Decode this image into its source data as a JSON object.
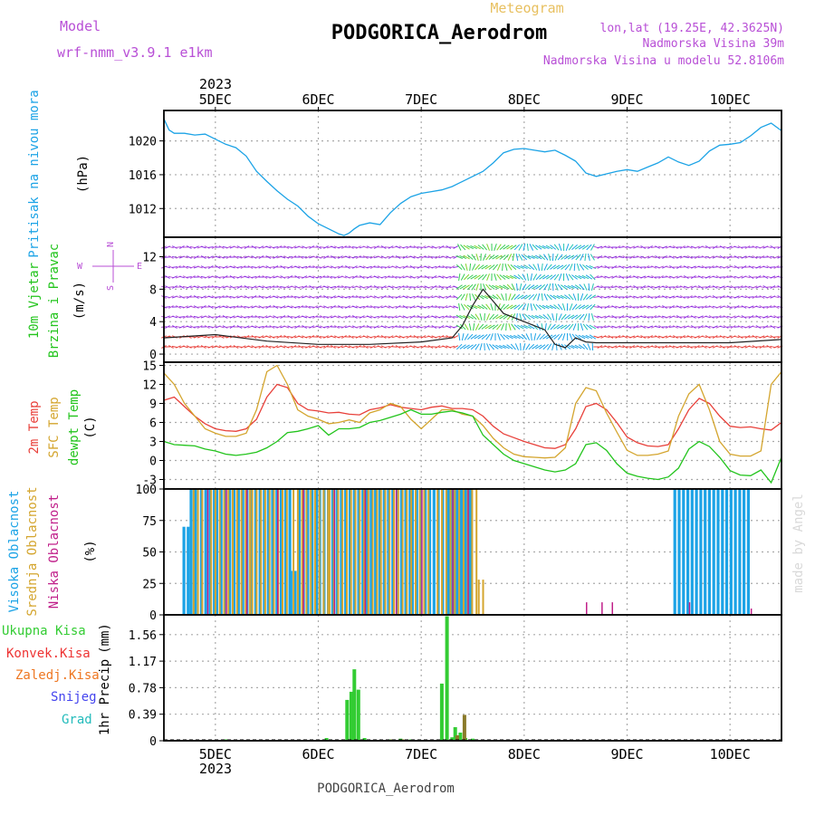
{
  "header": {
    "model_label": "Model",
    "model_name": "wrf-nmm_v3.9.1 e1km",
    "meteogram_label": "Meteogram",
    "station": "PODGORICA_Aerodrom",
    "lonlat": "lon,lat (19.25E, 42.3625N)",
    "elev": "Nadmorska Visina 39m",
    "model_elev": "Nadmorska Visina u modelu 52.8106m",
    "footer_station": "PODGORICA_Aerodrom",
    "credit": "made by Angel"
  },
  "colors": {
    "pressure": "#1ca3e6",
    "temp2m": "#e8403a",
    "sfc": "#d4a52e",
    "dewpt": "#22c41c",
    "high_cloud": "#1ca3e6",
    "mid_cloud": "#d4a52e",
    "low_cloud": "#c0208a",
    "total_precip": "#33cc33",
    "conv_precip": "#ee3333",
    "frozen_precip": "#ee7722",
    "snow": "#4444ee",
    "grad": "#22bbbb"
  },
  "chart_data": {
    "x_dates": [
      "5DEC",
      "6DEC",
      "7DEC",
      "8DEC",
      "9DEC",
      "10DEC"
    ],
    "year": "2023",
    "x_range_days": [
      4.5,
      10.5
    ],
    "panels": {
      "pressure": {
        "type": "line",
        "ylabel_a": "Pritisak na nivou mora",
        "ylabel_b": "(hPa)",
        "yticks": [
          1012,
          1016,
          1020
        ],
        "ylim": [
          1008.6,
          1023.6
        ],
        "x": [
          4.5,
          4.55,
          4.6,
          4.7,
          4.8,
          4.9,
          5.0,
          5.1,
          5.2,
          5.3,
          5.4,
          5.5,
          5.6,
          5.7,
          5.8,
          5.9,
          6.0,
          6.1,
          6.2,
          6.25,
          6.3,
          6.35,
          6.4,
          6.5,
          6.6,
          6.7,
          6.8,
          6.9,
          7.0,
          7.1,
          7.2,
          7.3,
          7.4,
          7.5,
          7.6,
          7.7,
          7.8,
          7.9,
          8.0,
          8.1,
          8.2,
          8.3,
          8.4,
          8.5,
          8.6,
          8.7,
          8.8,
          8.9,
          9.0,
          9.1,
          9.2,
          9.3,
          9.4,
          9.5,
          9.6,
          9.7,
          9.8,
          9.9,
          10.0,
          10.1,
          10.2,
          10.3,
          10.4,
          10.5
        ],
        "y": [
          1022.6,
          1021.3,
          1020.9,
          1020.9,
          1020.7,
          1020.8,
          1020.2,
          1019.6,
          1019.2,
          1018.2,
          1016.4,
          1015.2,
          1014.1,
          1013.1,
          1012.3,
          1011.1,
          1010.2,
          1009.6,
          1009.0,
          1008.8,
          1009.1,
          1009.6,
          1010.0,
          1010.3,
          1010.1,
          1011.5,
          1012.6,
          1013.4,
          1013.8,
          1014.0,
          1014.2,
          1014.6,
          1015.2,
          1015.8,
          1016.4,
          1017.4,
          1018.6,
          1019.0,
          1019.1,
          1018.9,
          1018.7,
          1018.9,
          1018.3,
          1017.6,
          1016.2,
          1015.8,
          1016.1,
          1016.4,
          1016.6,
          1016.4,
          1016.9,
          1017.4,
          1018.1,
          1017.5,
          1017.1,
          1017.6,
          1018.8,
          1019.5,
          1019.6,
          1019.8,
          1020.6,
          1021.6,
          1022.1,
          1021.2
        ]
      },
      "wind": {
        "type": "vector",
        "ylabel_a": "10m Vjetar",
        "ylabel_b": "Brzina i Pravac",
        "ylabel_c": "(m/s)",
        "compass_n": "N",
        "compass_s": "S",
        "compass_e": "E",
        "compass_w": "W",
        "yticks": [
          0,
          4,
          8,
          12
        ],
        "ylim": [
          -1,
          14.4
        ],
        "x": [
          4.5,
          5.0,
          5.5,
          6.0,
          6.5,
          7.0,
          7.3,
          7.4,
          7.5,
          7.6,
          7.7,
          7.8,
          8.0,
          8.2,
          8.3,
          8.4,
          8.5,
          8.6,
          8.7,
          9.0,
          9.5,
          10.0,
          10.5
        ],
        "speed": [
          2.0,
          2.4,
          1.6,
          1.2,
          1.2,
          1.5,
          2.0,
          3.5,
          6.0,
          8.0,
          6.5,
          5.0,
          4.0,
          3.0,
          1.2,
          0.8,
          2.0,
          1.5,
          1.4,
          1.4,
          1.4,
          1.4,
          1.8
        ]
      },
      "temperature": {
        "type": "line",
        "ylabel_a": "2m Temp",
        "ylabel_b": "SFC Temp",
        "ylabel_c": "dewpt Temp",
        "ylabel_d": "(C)",
        "yticks": [
          -3,
          0,
          3,
          6,
          9,
          12,
          15
        ],
        "ylim": [
          -4.5,
          15.5
        ],
        "x": [
          4.5,
          4.6,
          4.7,
          4.8,
          4.9,
          5.0,
          5.1,
          5.2,
          5.3,
          5.4,
          5.5,
          5.6,
          5.7,
          5.8,
          5.9,
          6.0,
          6.1,
          6.2,
          6.3,
          6.4,
          6.5,
          6.6,
          6.7,
          6.8,
          6.9,
          7.0,
          7.1,
          7.2,
          7.3,
          7.4,
          7.5,
          7.6,
          7.7,
          7.8,
          7.9,
          8.0,
          8.1,
          8.2,
          8.3,
          8.4,
          8.5,
          8.6,
          8.7,
          8.8,
          8.9,
          9.0,
          9.1,
          9.2,
          9.3,
          9.4,
          9.5,
          9.6,
          9.7,
          9.8,
          9.9,
          10.0,
          10.1,
          10.2,
          10.3,
          10.4,
          10.5
        ],
        "series": [
          {
            "name": "2m Temp",
            "y": [
              9.5,
              10.0,
              8.5,
              7.0,
              5.8,
              5.0,
              4.7,
              4.6,
              5.0,
              6.5,
              10.0,
              12.0,
              11.5,
              9.0,
              8.0,
              7.8,
              7.5,
              7.6,
              7.3,
              7.2,
              8.0,
              8.3,
              8.8,
              8.4,
              8.2,
              8.0,
              8.4,
              8.6,
              8.2,
              8.2,
              8.0,
              7.0,
              5.4,
              4.2,
              3.6,
              3.0,
              2.5,
              2.0,
              1.9,
              2.5,
              5.0,
              8.5,
              9.0,
              8.0,
              6.0,
              3.7,
              2.8,
              2.3,
              2.2,
              2.5,
              5.0,
              8.0,
              9.8,
              9.0,
              7.0,
              5.4,
              5.2,
              5.3,
              5.0,
              4.8,
              6.0
            ]
          },
          {
            "name": "SFC Temp",
            "y": [
              13.8,
              12.0,
              9.0,
              7.0,
              5.0,
              4.3,
              3.8,
              3.8,
              4.3,
              8.0,
              14.0,
              15.0,
              12.0,
              8.0,
              7.0,
              6.5,
              5.8,
              6.0,
              6.4,
              6.0,
              7.5,
              8.0,
              9.0,
              8.5,
              6.5,
              5.0,
              6.5,
              8.0,
              8.0,
              7.3,
              7.0,
              5.5,
              3.5,
              2.0,
              1.0,
              0.6,
              0.5,
              0.4,
              0.5,
              2.0,
              9.0,
              11.5,
              11.0,
              7.5,
              4.5,
              1.6,
              0.8,
              0.8,
              1.0,
              1.5,
              7.0,
              10.5,
              12.0,
              8.0,
              3.0,
              1.0,
              0.7,
              0.7,
              1.5,
              12.0,
              14.0
            ]
          },
          {
            "name": "dewpt Temp",
            "y": [
              3.0,
              2.5,
              2.4,
              2.3,
              1.8,
              1.5,
              1.0,
              0.8,
              1.0,
              1.3,
              2.0,
              3.0,
              4.4,
              4.6,
              5.0,
              5.5,
              4.0,
              5.0,
              5.0,
              5.2,
              6.0,
              6.3,
              6.8,
              7.3,
              8.0,
              7.3,
              7.3,
              7.6,
              7.8,
              7.5,
              7.0,
              4.0,
              2.5,
              1.0,
              0.0,
              -0.5,
              -1.0,
              -1.5,
              -1.8,
              -1.5,
              -0.5,
              2.5,
              2.8,
              1.6,
              -0.5,
              -2.0,
              -2.5,
              -2.8,
              -3.0,
              -2.6,
              -1.2,
              1.8,
              3.0,
              2.2,
              0.5,
              -1.6,
              -2.3,
              -2.4,
              -1.5,
              -3.5,
              0.5
            ]
          }
        ]
      },
      "clouds": {
        "type": "bar",
        "ylabel_a": "Visoka Oblacnost",
        "ylabel_b": "Srednja Oblacnost",
        "ylabel_c": "Niska Oblacnost",
        "ylabel_d": "(%)",
        "yticks": [
          0,
          25,
          50,
          75,
          100
        ],
        "ylim": [
          0,
          100
        ],
        "high_ranges": [
          [
            4.68,
            4.75,
            70
          ],
          [
            4.75,
            4.8,
            100
          ],
          [
            4.85,
            5.0,
            100
          ],
          [
            5.0,
            5.5,
            100
          ],
          [
            5.5,
            5.72,
            100
          ],
          [
            5.72,
            5.8,
            35
          ],
          [
            5.8,
            6.0,
            100
          ],
          [
            6.0,
            6.5,
            100
          ],
          [
            6.5,
            6.9,
            100
          ],
          [
            6.9,
            7.25,
            100
          ],
          [
            7.25,
            7.5,
            100
          ],
          [
            9.45,
            10.2,
            100
          ]
        ],
        "mid_ranges": [
          [
            4.78,
            4.9,
            100
          ],
          [
            4.95,
            5.35,
            100
          ],
          [
            5.35,
            5.7,
            100
          ],
          [
            5.75,
            6.1,
            100
          ],
          [
            6.1,
            6.6,
            100
          ],
          [
            6.6,
            7.1,
            100
          ],
          [
            7.15,
            7.55,
            100
          ],
          [
            7.55,
            7.62,
            28
          ]
        ],
        "low_marks": [
          [
            4.92,
            100
          ],
          [
            5.1,
            100
          ],
          [
            5.3,
            100
          ],
          [
            5.6,
            100
          ],
          [
            5.85,
            100
          ],
          [
            6.15,
            100
          ],
          [
            6.45,
            100
          ],
          [
            6.75,
            100
          ],
          [
            7.0,
            100
          ],
          [
            7.3,
            100
          ],
          [
            7.45,
            100
          ],
          [
            8.6,
            10
          ],
          [
            8.75,
            10
          ],
          [
            8.85,
            10
          ],
          [
            9.6,
            10
          ],
          [
            10.2,
            5
          ]
        ]
      },
      "precip": {
        "type": "bar",
        "ylabel_a": "1hr Precip",
        "ylabel_b": "(mm)",
        "legend": [
          "Ukupna Kisa",
          "Konvek.Kisa",
          "Zaledj.Kisa",
          "Snijeg",
          "Grad"
        ],
        "yticks": [
          0,
          0.39,
          0.78,
          1.17,
          1.56
        ],
        "ylim": [
          0,
          1.85
        ],
        "total": [
          [
            5.1,
            0.02
          ],
          [
            6.08,
            0.04
          ],
          [
            6.28,
            0.6
          ],
          [
            6.32,
            0.72
          ],
          [
            6.35,
            1.05
          ],
          [
            6.39,
            0.75
          ],
          [
            6.45,
            0.04
          ],
          [
            6.7,
            0.02
          ],
          [
            6.8,
            0.03
          ],
          [
            6.9,
            0.02
          ],
          [
            7.2,
            0.84
          ],
          [
            7.25,
            1.83
          ],
          [
            7.3,
            0.05
          ],
          [
            7.33,
            0.2
          ],
          [
            7.38,
            0.12
          ],
          [
            7.43,
            0.04
          ],
          [
            7.5,
            0.03
          ]
        ],
        "other": [
          [
            6.72,
            0.02
          ],
          [
            6.82,
            0.02
          ],
          [
            7.35,
            0.08
          ],
          [
            7.42,
            0.38
          ]
        ]
      }
    }
  }
}
